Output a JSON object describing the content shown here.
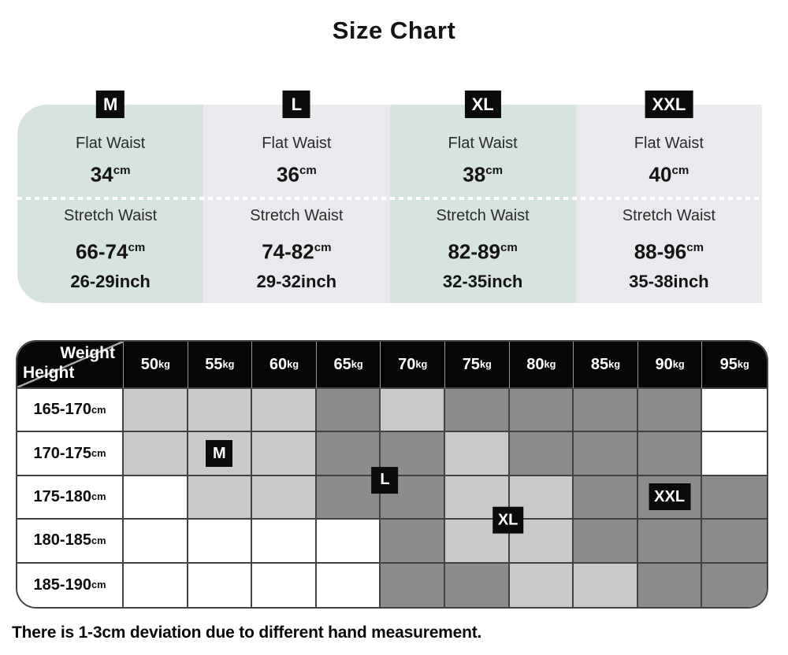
{
  "page": {
    "title": "Size Chart",
    "note": "There is 1-3cm deviation due to different hand measurement."
  },
  "colors": {
    "column_teal": "#d6e3df",
    "column_lavender": "#ece9ee",
    "tag_black": "#0b0b0b",
    "cell_light_gray": "#c9c9c9",
    "cell_dark_gray": "#8c8c8c",
    "cell_white": "#ffffff",
    "grid_line": "#424242"
  },
  "size_table": {
    "flat_label": "Flat Waist",
    "stretch_label": "Stretch Waist",
    "cm_unit": "cm",
    "columns": [
      {
        "tag": "M",
        "flat_cm": "34",
        "stretch_cm": "66-74",
        "stretch_inch": "26-29inch",
        "theme": "teal"
      },
      {
        "tag": "L",
        "flat_cm": "36",
        "stretch_cm": "74-82",
        "stretch_inch": "29-32inch",
        "theme": "lavender"
      },
      {
        "tag": "XL",
        "flat_cm": "38",
        "stretch_cm": "82-89",
        "stretch_inch": "32-35inch",
        "theme": "teal"
      },
      {
        "tag": "XXL",
        "flat_cm": "40",
        "stretch_cm": "88-96",
        "stretch_inch": "35-38inch",
        "theme": "lavender"
      }
    ]
  },
  "matrix": {
    "corner": {
      "weight": "Weight",
      "height": "Height"
    },
    "weight_unit": "kg",
    "height_unit": "cm",
    "weights": [
      "50",
      "55",
      "60",
      "65",
      "70",
      "75",
      "80",
      "85",
      "90",
      "95"
    ],
    "rows": [
      {
        "range": "165-170",
        "cells": [
          "light",
          "light",
          "light",
          "dark",
          "light",
          "dark",
          "dark",
          "dark",
          "dark",
          "white"
        ]
      },
      {
        "range": "170-175",
        "cells": [
          "light",
          "light",
          "light",
          "dark",
          "dark",
          "light",
          "dark",
          "dark",
          "dark",
          "white"
        ]
      },
      {
        "range": "175-180",
        "cells": [
          "white",
          "light",
          "light",
          "dark",
          "dark",
          "light",
          "light",
          "dark",
          "dark",
          "dark"
        ]
      },
      {
        "range": "180-185",
        "cells": [
          "white",
          "white",
          "white",
          "white",
          "dark",
          "light",
          "light",
          "dark",
          "dark",
          "dark"
        ]
      },
      {
        "range": "185-190",
        "cells": [
          "white",
          "white",
          "white",
          "white",
          "dark",
          "dark",
          "light",
          "light",
          "dark",
          "dark"
        ]
      }
    ],
    "markers": [
      {
        "label": "M",
        "row": 1,
        "col": 1,
        "anchor": "center"
      },
      {
        "label": "L",
        "row": 2,
        "col": 4,
        "anchor": "corner"
      },
      {
        "label": "XL",
        "row": 3,
        "col": 6,
        "anchor": "corner-xl"
      },
      {
        "label": "XXL",
        "row": 2,
        "col": 8,
        "anchor": "center"
      }
    ]
  },
  "chart_data": [
    {
      "type": "table",
      "title": "Size Chart",
      "columns": [
        "Size",
        "Flat Waist (cm)",
        "Stretch Waist (cm)",
        "Stretch Waist (inch)"
      ],
      "rows": [
        [
          "M",
          "34",
          "66-74",
          "26-29"
        ],
        [
          "L",
          "36",
          "74-82",
          "29-32"
        ],
        [
          "XL",
          "38",
          "82-89",
          "32-35"
        ],
        [
          "XXL",
          "40",
          "88-96",
          "35-38"
        ]
      ]
    },
    {
      "type": "heatmap",
      "title": "Recommended size by Height and Weight",
      "xlabel": "Weight (kg)",
      "ylabel": "Height (cm)",
      "x_categories": [
        "50",
        "55",
        "60",
        "65",
        "70",
        "75",
        "80",
        "85",
        "90",
        "95"
      ],
      "y_categories": [
        "165-170",
        "170-175",
        "175-180",
        "180-185",
        "185-190"
      ],
      "shading": [
        [
          "light",
          "light",
          "light",
          "dark",
          "light",
          "dark",
          "dark",
          "dark",
          "dark",
          "white"
        ],
        [
          "light",
          "light",
          "light",
          "dark",
          "dark",
          "light",
          "dark",
          "dark",
          "dark",
          "white"
        ],
        [
          "white",
          "light",
          "light",
          "dark",
          "dark",
          "light",
          "light",
          "dark",
          "dark",
          "dark"
        ],
        [
          "white",
          "white",
          "white",
          "white",
          "dark",
          "light",
          "light",
          "dark",
          "dark",
          "dark"
        ],
        [
          "white",
          "white",
          "white",
          "white",
          "dark",
          "dark",
          "light",
          "light",
          "dark",
          "dark"
        ]
      ],
      "size_labels": [
        {
          "size": "M",
          "height": "170-175",
          "weight": "55"
        },
        {
          "size": "L",
          "height": "175-180",
          "weight": "70"
        },
        {
          "size": "XL",
          "height": "180-185",
          "weight": "80"
        },
        {
          "size": "XXL",
          "height": "175-180",
          "weight": "90"
        }
      ]
    }
  ]
}
